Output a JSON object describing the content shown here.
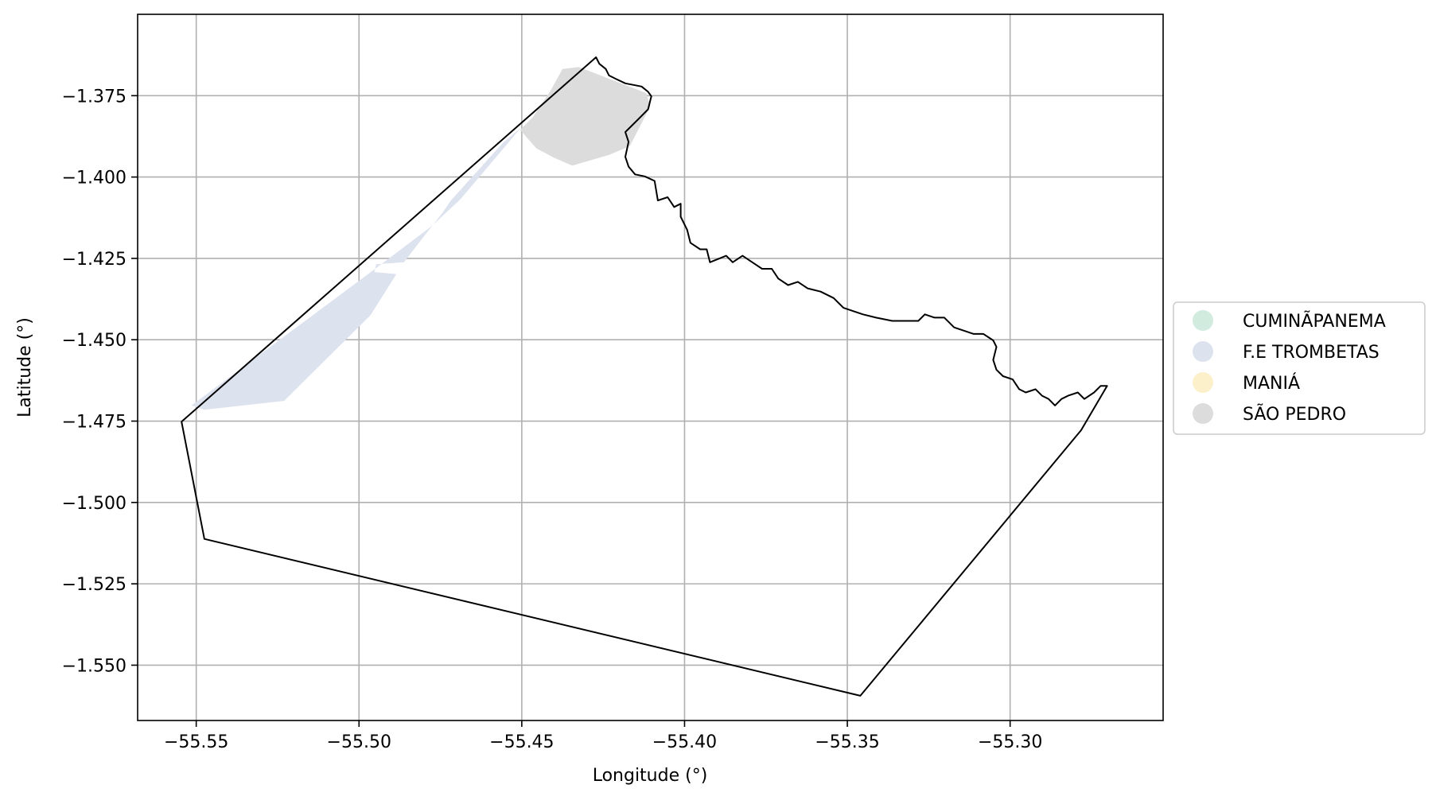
{
  "chart_data": {
    "type": "map",
    "xlabel": "Longitude (°)",
    "ylabel": "Latitude (°)",
    "xlim": [
      -55.568,
      -55.253
    ],
    "ylim": [
      -1.567,
      -1.35
    ],
    "grid": true,
    "legend_position": "right",
    "xticks": [
      -55.55,
      -55.5,
      -55.45,
      -55.4,
      -55.35,
      -55.3
    ],
    "xtick_labels": [
      "−55.55",
      "−55.50",
      "−55.45",
      "−55.40",
      "−55.35",
      "−55.30"
    ],
    "yticks": [
      -1.375,
      -1.4,
      -1.425,
      -1.45,
      -1.475,
      -1.5,
      -1.525,
      -1.55
    ],
    "ytick_labels": [
      "−1.375",
      "−1.400",
      "−1.425",
      "−1.450",
      "−1.475",
      "−1.500",
      "−1.525",
      "−1.550"
    ],
    "legend": [
      {
        "label": "CUMINÃPANEMA",
        "color": "#d1ebdf"
      },
      {
        "label": "F.E TROMBETAS",
        "color": "#dde2ef"
      },
      {
        "label": "MANIÁ",
        "color": "#fbf0c9"
      },
      {
        "label": "SÃO PEDRO",
        "color": "#dcdcdc"
      }
    ],
    "regions": [
      {
        "name": "F.E TROMBETAS",
        "color": "#dde2ef",
        "polygon": [
          [
            -55.5475,
            -1.4715
          ],
          [
            -55.523,
            -1.4688
          ],
          [
            -55.4965,
            -1.4425
          ],
          [
            -55.4885,
            -1.4298
          ],
          [
            -55.4953,
            -1.4292
          ],
          [
            -55.4947,
            -1.4268
          ],
          [
            -55.4862,
            -1.4262
          ],
          [
            -55.4805,
            -1.4188
          ],
          [
            -55.4742,
            -1.4108
          ],
          [
            -55.4718,
            -1.4072
          ],
          [
            -55.4558,
            -1.3895
          ],
          [
            -55.4502,
            -1.3848
          ],
          [
            -55.4688,
            -1.4068
          ],
          [
            -55.4778,
            -1.4152
          ],
          [
            -55.4972,
            -1.4298
          ],
          [
            -55.5515,
            -1.4702
          ]
        ]
      },
      {
        "name": "SÃO PEDRO",
        "color": "#dcdcdc",
        "polygon": [
          [
            -55.4505,
            -1.3855
          ],
          [
            -55.4465,
            -1.3815
          ],
          [
            -55.4412,
            -1.3735
          ],
          [
            -55.4375,
            -1.3668
          ],
          [
            -55.4325,
            -1.3662
          ],
          [
            -55.4118,
            -1.3742
          ],
          [
            -55.4105,
            -1.3782
          ],
          [
            -55.4168,
            -1.3905
          ],
          [
            -55.4232,
            -1.3932
          ],
          [
            -55.4345,
            -1.3965
          ],
          [
            -55.4398,
            -1.3942
          ],
          [
            -55.4455,
            -1.3912
          ],
          [
            -55.4485,
            -1.3878
          ]
        ]
      }
    ],
    "boundary": [
      [
        -55.5545,
        -1.4752
      ],
      [
        -55.4272,
        -1.3632
      ],
      [
        -55.4262,
        -1.3652
      ],
      [
        -55.4242,
        -1.3668
      ],
      [
        -55.4232,
        -1.3688
      ],
      [
        -55.4212,
        -1.3698
      ],
      [
        -55.4182,
        -1.3712
      ],
      [
        -55.4152,
        -1.3718
      ],
      [
        -55.4132,
        -1.3722
      ],
      [
        -55.4112,
        -1.3738
      ],
      [
        -55.4102,
        -1.3752
      ],
      [
        -55.4112,
        -1.3792
      ],
      [
        -55.4142,
        -1.3822
      ],
      [
        -55.4172,
        -1.3852
      ],
      [
        -55.4182,
        -1.3862
      ],
      [
        -55.4172,
        -1.3892
      ],
      [
        -55.4182,
        -1.3938
      ],
      [
        -55.4172,
        -1.3968
      ],
      [
        -55.4152,
        -1.3992
      ],
      [
        -55.4122,
        -1.3998
      ],
      [
        -55.4092,
        -1.4012
      ],
      [
        -55.4082,
        -1.4072
      ],
      [
        -55.4052,
        -1.4062
      ],
      [
        -55.4032,
        -1.4092
      ],
      [
        -55.4012,
        -1.4082
      ],
      [
        -55.4012,
        -1.4122
      ],
      [
        -55.3992,
        -1.4162
      ],
      [
        -55.3982,
        -1.4202
      ],
      [
        -55.3952,
        -1.4222
      ],
      [
        -55.3932,
        -1.4222
      ],
      [
        -55.3922,
        -1.4262
      ],
      [
        -55.3872,
        -1.4242
      ],
      [
        -55.3852,
        -1.4262
      ],
      [
        -55.3822,
        -1.4242
      ],
      [
        -55.3792,
        -1.4262
      ],
      [
        -55.3762,
        -1.4282
      ],
      [
        -55.3732,
        -1.4282
      ],
      [
        -55.3712,
        -1.4312
      ],
      [
        -55.3682,
        -1.4332
      ],
      [
        -55.3652,
        -1.4322
      ],
      [
        -55.3622,
        -1.4342
      ],
      [
        -55.3582,
        -1.4352
      ],
      [
        -55.3542,
        -1.4372
      ],
      [
        -55.3512,
        -1.4402
      ],
      [
        -55.3482,
        -1.4412
      ],
      [
        -55.3452,
        -1.4422
      ],
      [
        -55.3412,
        -1.4432
      ],
      [
        -55.3362,
        -1.4442
      ],
      [
        -55.3322,
        -1.4442
      ],
      [
        -55.3282,
        -1.4442
      ],
      [
        -55.3262,
        -1.4422
      ],
      [
        -55.3232,
        -1.4432
      ],
      [
        -55.3202,
        -1.4432
      ],
      [
        -55.3172,
        -1.4462
      ],
      [
        -55.3142,
        -1.4472
      ],
      [
        -55.3112,
        -1.4482
      ],
      [
        -55.3082,
        -1.4482
      ],
      [
        -55.3052,
        -1.4502
      ],
      [
        -55.3042,
        -1.4522
      ],
      [
        -55.3052,
        -1.4562
      ],
      [
        -55.3042,
        -1.4592
      ],
      [
        -55.3022,
        -1.4612
      ],
      [
        -55.2992,
        -1.4622
      ],
      [
        -55.2972,
        -1.4652
      ],
      [
        -55.2952,
        -1.4662
      ],
      [
        -55.2922,
        -1.4652
      ],
      [
        -55.2902,
        -1.4672
      ],
      [
        -55.2882,
        -1.4682
      ],
      [
        -55.2862,
        -1.4702
      ],
      [
        -55.2842,
        -1.4682
      ],
      [
        -55.2822,
        -1.4672
      ],
      [
        -55.2792,
        -1.4662
      ],
      [
        -55.2772,
        -1.4682
      ],
      [
        -55.2742,
        -1.4662
      ],
      [
        -55.2722,
        -1.4642
      ],
      [
        -55.2702,
        -1.4642
      ],
      [
        -55.2782,
        -1.4778
      ],
      [
        -55.346,
        -1.5594
      ],
      [
        -55.5475,
        -1.5112
      ]
    ]
  }
}
